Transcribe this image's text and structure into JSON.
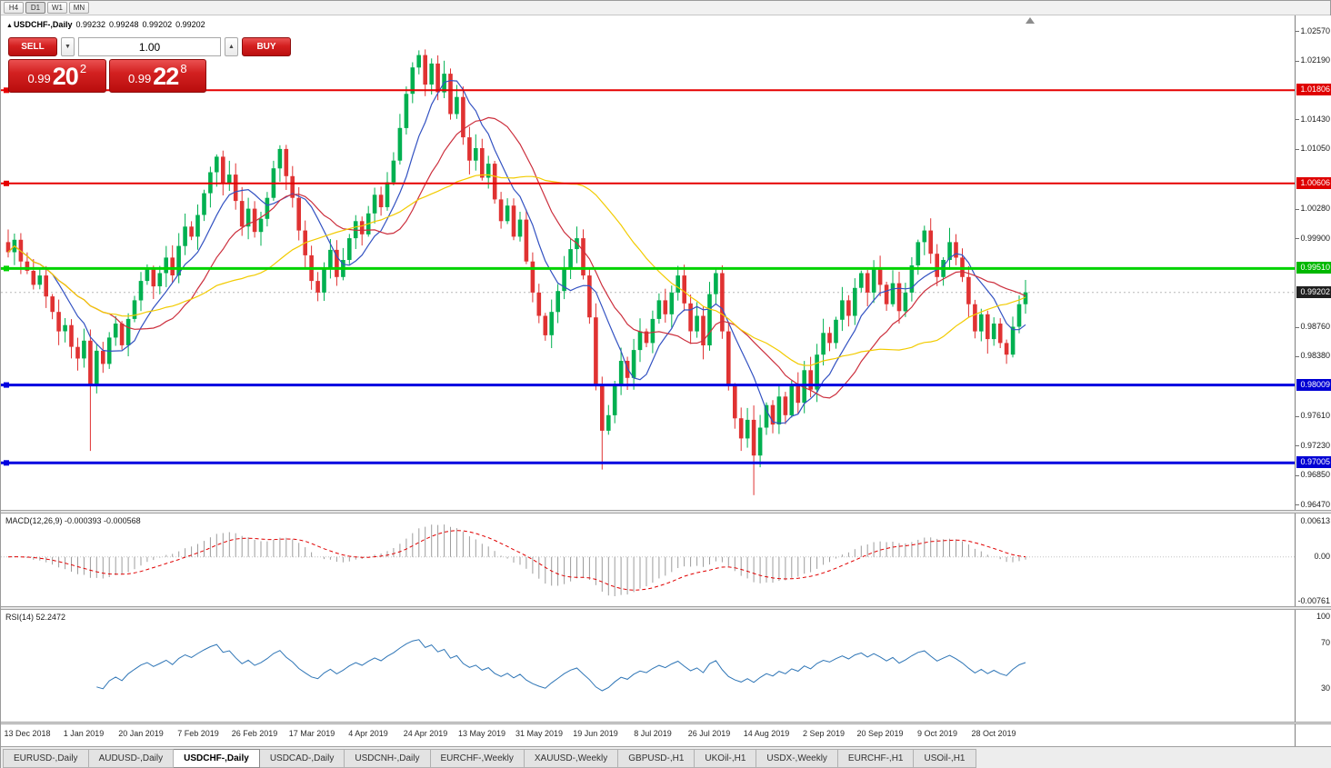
{
  "toolbar": {
    "timeframes": [
      "H4",
      "D1",
      "W1",
      "MN"
    ],
    "active": "D1"
  },
  "chart_header": {
    "collapse_icon": "▲",
    "title": "USDCHF-,Daily",
    "open": "0.99232",
    "high": "0.99248",
    "low": "0.99202",
    "close": "0.99202"
  },
  "one_click": {
    "sell_label": "SELL",
    "buy_label": "BUY",
    "volume": "1.00",
    "volume_down": "▼",
    "volume_up": "▲",
    "sell_price": {
      "prefix": "0.99",
      "big": "20",
      "sup": "2"
    },
    "buy_price": {
      "prefix": "0.99",
      "big": "22",
      "sup": "8"
    }
  },
  "indicator_labels": {
    "macd": "MACD(12,26,9) -0.000393 -0.000568",
    "rsi": "RSI(14) 52.2472"
  },
  "axes": {
    "price_ticks": [
      {
        "t": "1.02570",
        "v": 1.0257
      },
      {
        "t": "1.02190",
        "v": 1.0219
      },
      {
        "t": "1.01430",
        "v": 1.0143
      },
      {
        "t": "1.01050",
        "v": 1.0105
      },
      {
        "t": "1.00280",
        "v": 1.0028
      },
      {
        "t": "0.99900",
        "v": 0.999
      },
      {
        "t": "0.98760",
        "v": 0.9876
      },
      {
        "t": "0.98380",
        "v": 0.9838
      },
      {
        "t": "0.97610",
        "v": 0.9761
      },
      {
        "t": "0.97230",
        "v": 0.9723
      },
      {
        "t": "0.96850",
        "v": 0.9685
      },
      {
        "t": "0.96470",
        "v": 0.9647
      }
    ],
    "price_flags": [
      {
        "t": "1.01806",
        "v": 1.01806,
        "bg": "#df0000"
      },
      {
        "t": "1.00606",
        "v": 1.00606,
        "bg": "#df0000"
      },
      {
        "t": "0.99510",
        "v": 0.9951,
        "bg": "#00b800"
      },
      {
        "t": "0.99202",
        "v": 0.99202,
        "bg": "#1f1f1f"
      },
      {
        "t": "0.98009",
        "v": 0.98009,
        "bg": "#0000d4"
      },
      {
        "t": "0.97005",
        "v": 0.97005,
        "bg": "#0000d4"
      }
    ],
    "macd_ticks": [
      {
        "t": "0.00613",
        "v": 0.00613
      },
      {
        "t": "0.00",
        "v": 0
      },
      {
        "t": "-0.00761",
        "v": -0.00761
      }
    ],
    "rsi_ticks": [
      {
        "t": "100",
        "v": 100
      },
      {
        "t": "70",
        "v": 70
      },
      {
        "t": "30",
        "v": 30
      }
    ],
    "dates": [
      {
        "t": "13 Dec 2018",
        "i": 3
      },
      {
        "t": "1 Jan 2019",
        "i": 12
      },
      {
        "t": "20 Jan 2019",
        "i": 21
      },
      {
        "t": "7 Feb 2019",
        "i": 30
      },
      {
        "t": "26 Feb 2019",
        "i": 39
      },
      {
        "t": "17 Mar 2019",
        "i": 48
      },
      {
        "t": "4 Apr 2019",
        "i": 57
      },
      {
        "t": "24 Apr 2019",
        "i": 66
      },
      {
        "t": "13 May 2019",
        "i": 75
      },
      {
        "t": "31 May 2019",
        "i": 84
      },
      {
        "t": "19 Jun 2019",
        "i": 93
      },
      {
        "t": "8 Jul 2019",
        "i": 102
      },
      {
        "t": "26 Jul 2019",
        "i": 111
      },
      {
        "t": "14 Aug 2019",
        "i": 120
      },
      {
        "t": "2 Sep 2019",
        "i": 129
      },
      {
        "t": "20 Sep 2019",
        "i": 138
      },
      {
        "t": "9 Oct 2019",
        "i": 147
      },
      {
        "t": "28 Oct 2019",
        "i": 156
      }
    ]
  },
  "chart_data": {
    "type": "candlestick",
    "symbol": "USDCHF-",
    "period": "Daily",
    "up_color": "#00b050",
    "down_color": "#e03232",
    "price_axis": {
      "max": 1.0277,
      "min": 0.964
    },
    "macd_axis": {
      "max": 0.0075,
      "min": -0.0085
    },
    "rsi_axis": {
      "max": 100,
      "min": 0
    },
    "first_open": 0.9985,
    "closes": [
      0.9972,
      0.9988,
      0.996,
      0.9948,
      0.993,
      0.9942,
      0.9915,
      0.9895,
      0.987,
      0.9878,
      0.985,
      0.9835,
      0.9858,
      0.98,
      0.9845,
      0.9828,
      0.9862,
      0.988,
      0.9852,
      0.9886,
      0.991,
      0.9935,
      0.995,
      0.9928,
      0.9945,
      0.9965,
      0.9942,
      0.998,
      1.0005,
      0.9992,
      1.002,
      1.0048,
      1.0075,
      1.0095,
      1.006,
      1.0072,
      1.0038,
      1.0005,
      1.0028,
      0.9998,
      1.0015,
      1.0042,
      1.008,
      1.0105,
      1.007,
      1.0042,
      1.0,
      0.9968,
      0.9935,
      0.992,
      0.9952,
      0.9975,
      0.994,
      0.9962,
      0.999,
      1.0012,
      0.9995,
      1.0022,
      1.0046,
      1.003,
      1.0062,
      1.009,
      1.0132,
      1.0176,
      1.021,
      1.0226,
      1.0188,
      1.0215,
      1.0178,
      1.0202,
      1.015,
      1.0172,
      1.012,
      1.009,
      1.0106,
      1.0068,
      1.0086,
      1.004,
      1.0012,
      1.0032,
      0.9992,
      1.0014,
      0.996,
      0.992,
      0.989,
      0.9865,
      0.9895,
      0.9922,
      0.9952,
      0.9976,
      0.999,
      0.9942,
      0.9888,
      0.98,
      0.9742,
      0.9762,
      0.98,
      0.9832,
      0.981,
      0.9846,
      0.987,
      0.9855,
      0.9886,
      0.991,
      0.9892,
      0.992,
      0.9942,
      0.9906,
      0.987,
      0.989,
      0.9852,
      0.9918,
      0.9945,
      0.987,
      0.98,
      0.9758,
      0.9732,
      0.9756,
      0.971,
      0.9746,
      0.9775,
      0.975,
      0.9786,
      0.9762,
      0.98,
      0.9778,
      0.982,
      0.9795,
      0.984,
      0.9868,
      0.9855,
      0.9885,
      0.991,
      0.989,
      0.9926,
      0.9945,
      0.992,
      0.995,
      0.993,
      0.9905,
      0.9932,
      0.9896,
      0.992,
      0.9955,
      0.9985,
      1.0,
      0.997,
      0.994,
      0.9962,
      0.9985,
      0.9965,
      0.994,
      0.9905,
      0.987,
      0.9892,
      0.986,
      0.988,
      0.9855,
      0.984,
      0.9876,
      0.9905,
      0.99202
    ],
    "wick_lows": {
      "13": 0.9716,
      "94": 0.9692,
      "118": 0.9659
    },
    "wick_highs": {
      "33": 1.0098,
      "65": 1.0232
    },
    "current_price": 0.99202,
    "hlines": [
      {
        "v": 1.01806,
        "color": "#e60000",
        "w": 2,
        "handle": true
      },
      {
        "v": 1.00606,
        "color": "#e60000",
        "w": 2,
        "handle": true
      },
      {
        "v": 0.9951,
        "color": "#00d300",
        "w": 3,
        "handle": true
      },
      {
        "v": 0.98009,
        "color": "#0000e0",
        "w": 3,
        "handle": true
      },
      {
        "v": 0.97005,
        "color": "#0000e0",
        "w": 3,
        "handle": true
      }
    ],
    "moving_averages": [
      {
        "period": 8,
        "color": "#3352c2"
      },
      {
        "period": 17,
        "color": "#cc2f3d"
      },
      {
        "period": 34,
        "color": "#f2cb00"
      }
    ],
    "macd": {
      "fast": 12,
      "slow": 26,
      "signal": 9,
      "hist_color": "#9d9d9d",
      "signal_color": "#e00000"
    },
    "rsi": {
      "period": 14,
      "color": "#2e75b6"
    }
  },
  "tabs": [
    {
      "label": "EURUSD-,Daily",
      "active": false
    },
    {
      "label": "AUDUSD-,Daily",
      "active": false
    },
    {
      "label": "USDCHF-,Daily",
      "active": true
    },
    {
      "label": "USDCAD-,Daily",
      "active": false
    },
    {
      "label": "USDCNH-,Daily",
      "active": false
    },
    {
      "label": "EURCHF-,Weekly",
      "active": false
    },
    {
      "label": "XAUUSD-,Weekly",
      "active": false
    },
    {
      "label": "GBPUSD-,H1",
      "active": false
    },
    {
      "label": "UKOil-,H1",
      "active": false
    },
    {
      "label": "USDX-,Weekly",
      "active": false
    },
    {
      "label": "EURCHF-,H1",
      "active": false
    },
    {
      "label": "USOil-,H1",
      "active": false
    }
  ]
}
